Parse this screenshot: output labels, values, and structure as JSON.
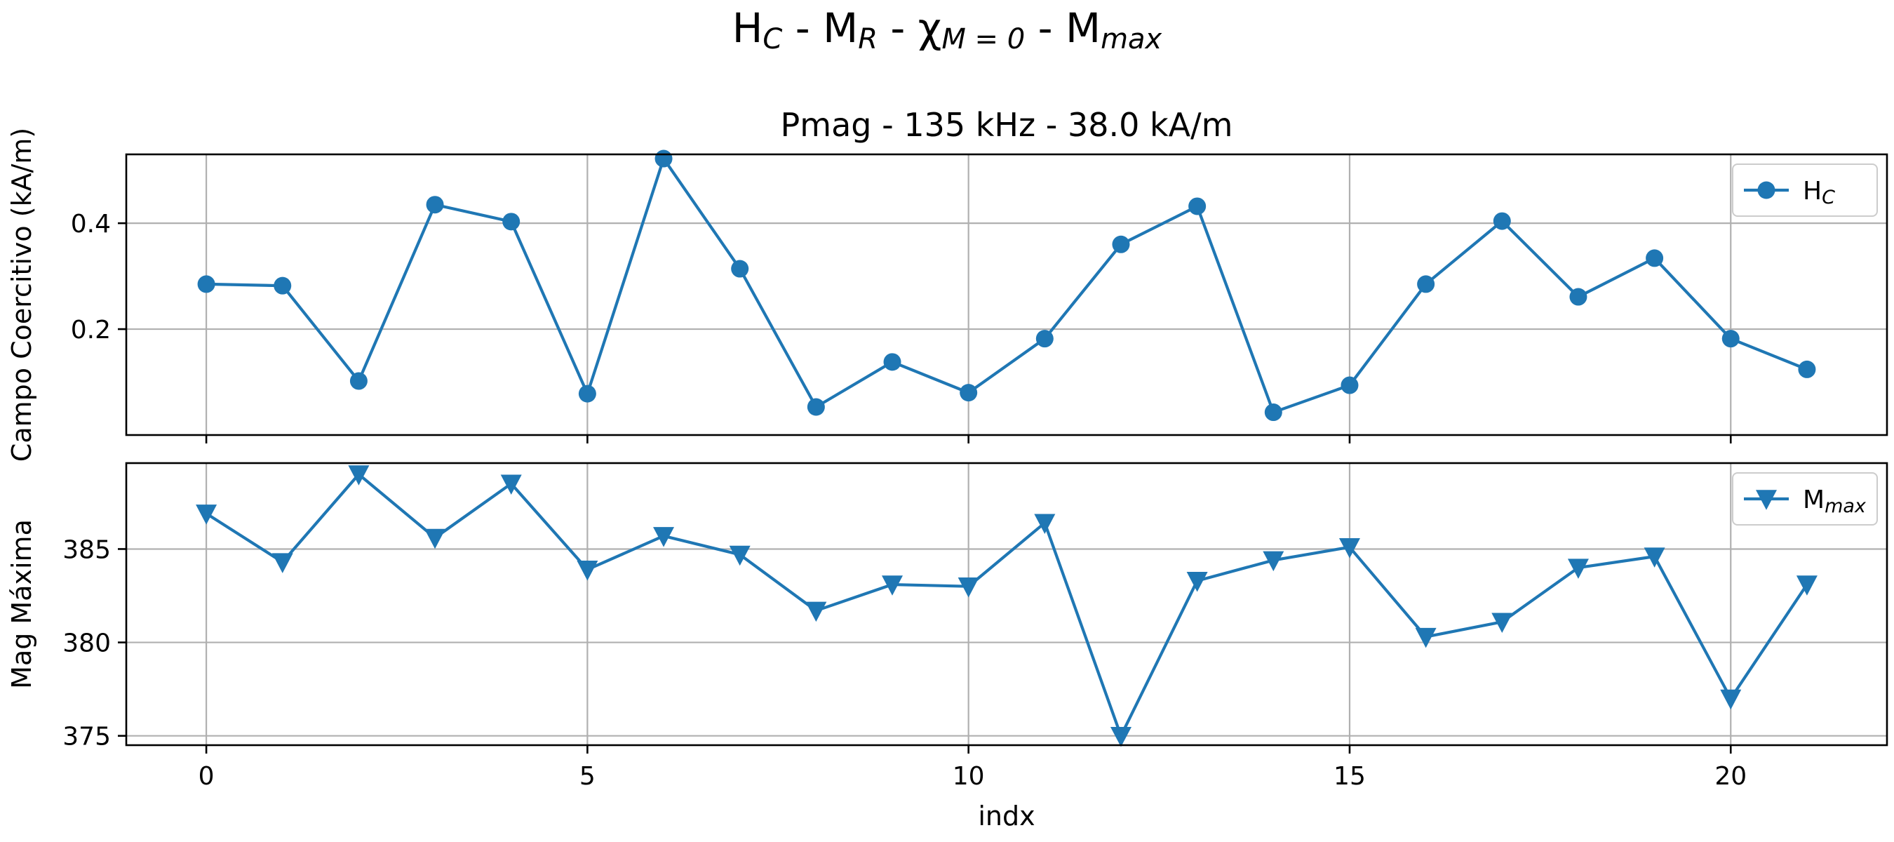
{
  "figure": {
    "suptitle_main": "H",
    "suptitle_parts": [
      {
        "base": "H",
        "sub": "C"
      },
      {
        "sep": " - "
      },
      {
        "base": "M",
        "sub": "R"
      },
      {
        "sep": " - "
      },
      {
        "base": "χ",
        "sub": "M = 0"
      },
      {
        "sep": " - "
      },
      {
        "base": "M",
        "sub": "max"
      }
    ]
  },
  "colors": {
    "series": "#1f77b4"
  },
  "chart_data": [
    {
      "type": "line",
      "title": "Pmag - 135 kHz - 38.0 kA/m",
      "ylabel": "Campo Coercitivo (kA/m)",
      "xlabel": "",
      "xlim": [
        -1.05,
        22.05
      ],
      "ylim": [
        0.0,
        0.53
      ],
      "xticks": [
        0,
        5,
        10,
        15,
        20
      ],
      "xtick_labels": [
        "0",
        "5",
        "10",
        "15",
        "20"
      ],
      "yticks": [
        0.2,
        0.4
      ],
      "ytick_labels": [
        "0.2",
        "0.4"
      ],
      "grid": true,
      "legend_position": "upper right",
      "marker": "circle",
      "series": [
        {
          "name_base": "H",
          "name_sub": "C",
          "x": [
            0,
            1,
            2,
            3,
            4,
            5,
            6,
            7,
            8,
            9,
            10,
            11,
            12,
            13,
            14,
            15,
            16,
            17,
            18,
            19,
            20,
            21
          ],
          "values": [
            0.285,
            0.282,
            0.102,
            0.435,
            0.403,
            0.078,
            0.522,
            0.314,
            0.053,
            0.138,
            0.08,
            0.182,
            0.36,
            0.432,
            0.043,
            0.094,
            0.285,
            0.404,
            0.261,
            0.334,
            0.182,
            0.124
          ]
        }
      ]
    },
    {
      "type": "line",
      "title": "",
      "ylabel": "Mag Máxima",
      "xlabel": "indx",
      "xlim": [
        -1.05,
        22.05
      ],
      "ylim": [
        374.5,
        389.6
      ],
      "xticks": [
        0,
        5,
        10,
        15,
        20
      ],
      "xtick_labels": [
        "0",
        "5",
        "10",
        "15",
        "20"
      ],
      "yticks": [
        375,
        380,
        385
      ],
      "ytick_labels": [
        "375",
        "380",
        "385"
      ],
      "grid": true,
      "legend_position": "upper right",
      "marker": "triangle-down",
      "series": [
        {
          "name_base": "M",
          "name_sub": "max",
          "x": [
            0,
            1,
            2,
            3,
            4,
            5,
            6,
            7,
            8,
            9,
            10,
            11,
            12,
            13,
            14,
            15,
            16,
            17,
            18,
            19,
            20,
            21
          ],
          "values": [
            386.9,
            384.3,
            389.0,
            385.6,
            388.5,
            383.9,
            385.7,
            384.7,
            381.7,
            383.1,
            383.0,
            386.4,
            375.0,
            383.3,
            384.4,
            385.1,
            380.3,
            381.1,
            384.0,
            384.6,
            377.0,
            383.1
          ]
        }
      ]
    }
  ]
}
